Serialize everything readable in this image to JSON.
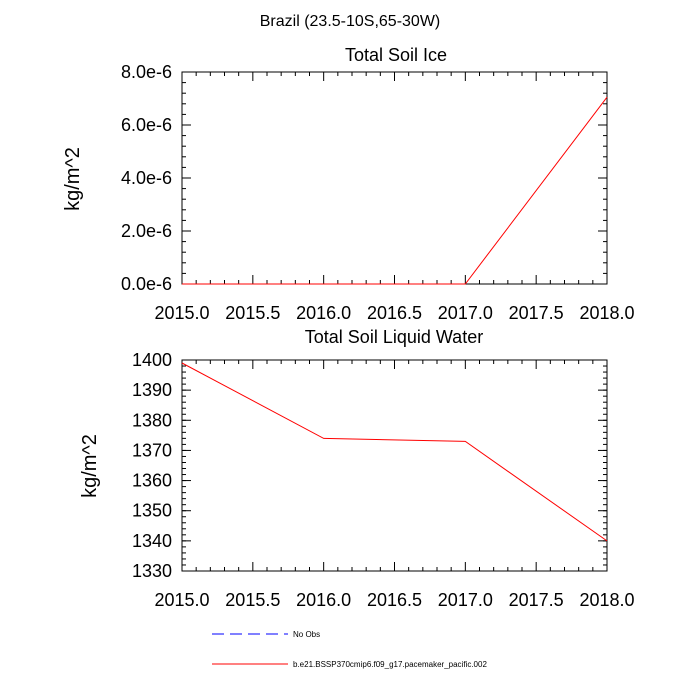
{
  "figure_title": "Brazil (23.5-10S,65-30W)",
  "colors": {
    "model_line": "#ff0000",
    "obs_line": "#0000ff",
    "axes": "#000000"
  },
  "legend": {
    "entries": [
      {
        "label": "No Obs",
        "style": "dashed",
        "color": "#0000ff"
      },
      {
        "label": "b.e21.BSSP370cmip6.f09_g17.pacemaker_pacific.002",
        "style": "solid",
        "color": "#ff0000"
      }
    ]
  },
  "chart_data": [
    {
      "type": "line",
      "title": "Total Soil Ice",
      "xlabel": "",
      "ylabel": "kg/m^2",
      "xlim": [
        2015.0,
        2018.0
      ],
      "ylim": [
        0,
        8e-06
      ],
      "x_ticks": [
        2015.0,
        2015.5,
        2016.0,
        2016.5,
        2017.0,
        2017.5,
        2018.0
      ],
      "x_tick_labels": [
        "2015.0",
        "2015.5",
        "2016.0",
        "2016.5",
        "2017.0",
        "2017.5",
        "2018.0"
      ],
      "y_ticks": [
        0,
        2e-06,
        4e-06,
        6e-06,
        8e-06
      ],
      "y_tick_labels": [
        "0.0e-6",
        "2.0e-6",
        "4.0e-6",
        "6.0e-6",
        "8.0e-6"
      ],
      "y_minor_step": 4e-07,
      "grid": false,
      "series": [
        {
          "name": "b.e21.BSSP370cmip6.f09_g17.pacemaker_pacific.002",
          "x": [
            2015,
            2016,
            2017,
            2018
          ],
          "y": [
            0,
            0,
            0,
            7.05e-06
          ]
        }
      ]
    },
    {
      "type": "line",
      "title": "Total Soil Liquid Water",
      "xlabel": "",
      "ylabel": "kg/m^2",
      "xlim": [
        2015.0,
        2018.0
      ],
      "ylim": [
        1330,
        1400
      ],
      "x_ticks": [
        2015.0,
        2015.5,
        2016.0,
        2016.5,
        2017.0,
        2017.5,
        2018.0
      ],
      "x_tick_labels": [
        "2015.0",
        "2015.5",
        "2016.0",
        "2016.5",
        "2017.0",
        "2017.5",
        "2018.0"
      ],
      "y_ticks": [
        1330,
        1340,
        1350,
        1360,
        1370,
        1380,
        1390,
        1400
      ],
      "y_tick_labels": [
        "1330",
        "1340",
        "1350",
        "1360",
        "1370",
        "1380",
        "1390",
        "1400"
      ],
      "y_minor_step": 2,
      "grid": false,
      "series": [
        {
          "name": "b.e21.BSSP370cmip6.f09_g17.pacemaker_pacific.002",
          "x": [
            2015,
            2016,
            2017,
            2018
          ],
          "y": [
            1399,
            1374,
            1373,
            1340
          ]
        }
      ]
    }
  ]
}
